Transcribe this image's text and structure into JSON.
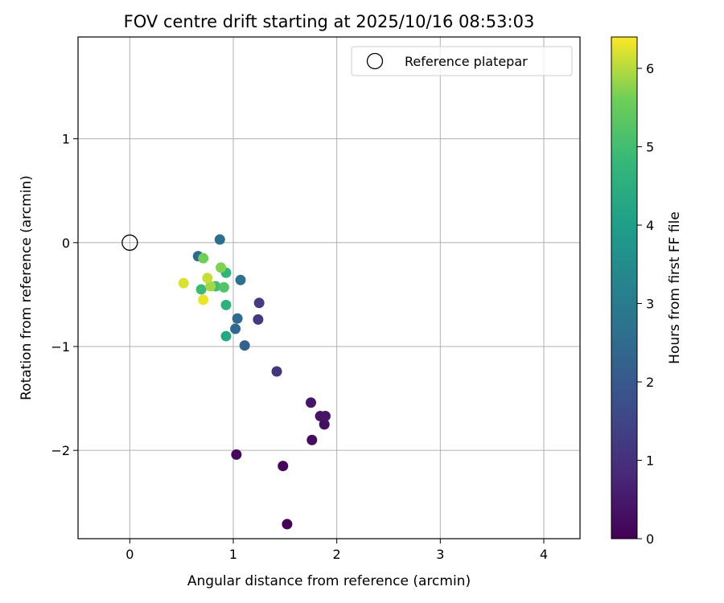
{
  "chart_data": {
    "type": "scatter",
    "title": "FOV centre drift starting at 2025/10/16 08:53:03",
    "xlabel": "Angular distance from reference (arcmin)",
    "ylabel": "Rotation from reference (arcmin)",
    "xlim": [
      -0.5,
      4.35
    ],
    "ylim": [
      -2.85,
      1.98
    ],
    "xticks": [
      0,
      1,
      2,
      3,
      4
    ],
    "yticks": [
      -2,
      -1,
      0,
      1
    ],
    "xtick_labels": [
      "0",
      "1",
      "2",
      "3",
      "4"
    ],
    "ytick_labels": [
      "−2",
      "−1",
      "0",
      "1"
    ],
    "grid": true,
    "legend": {
      "position": "top-right",
      "label": "Reference platepar"
    },
    "reference_point": {
      "x": 0,
      "y": 0
    },
    "colorbar": {
      "label": "Hours from first FF file",
      "range": [
        0,
        6.4
      ],
      "ticks": [
        0,
        1,
        2,
        3,
        4,
        5,
        6
      ],
      "tick_labels": [
        "0",
        "1",
        "2",
        "3",
        "4",
        "5",
        "6"
      ],
      "colormap": "viridis"
    },
    "series": [
      {
        "name": "FOV centre",
        "points": [
          {
            "x": 1.52,
            "y": -2.71,
            "hours": 0.05
          },
          {
            "x": 1.48,
            "y": -2.15,
            "hours": 0.12
          },
          {
            "x": 1.03,
            "y": -2.04,
            "hours": 0.18
          },
          {
            "x": 1.76,
            "y": -1.9,
            "hours": 0.25
          },
          {
            "x": 1.88,
            "y": -1.75,
            "hours": 0.3
          },
          {
            "x": 1.84,
            "y": -1.67,
            "hours": 0.35
          },
          {
            "x": 1.89,
            "y": -1.67,
            "hours": 0.4
          },
          {
            "x": 1.75,
            "y": -1.54,
            "hours": 0.45
          },
          {
            "x": 1.42,
            "y": -1.24,
            "hours": 1.1
          },
          {
            "x": 1.24,
            "y": -0.74,
            "hours": 1.2
          },
          {
            "x": 1.25,
            "y": -0.58,
            "hours": 1.3
          },
          {
            "x": 1.11,
            "y": -0.99,
            "hours": 2.2
          },
          {
            "x": 1.02,
            "y": -0.83,
            "hours": 2.4
          },
          {
            "x": 1.04,
            "y": -0.73,
            "hours": 2.5
          },
          {
            "x": 0.66,
            "y": -0.13,
            "hours": 2.45
          },
          {
            "x": 0.87,
            "y": 0.03,
            "hours": 2.6
          },
          {
            "x": 1.07,
            "y": -0.36,
            "hours": 2.7
          },
          {
            "x": 0.93,
            "y": -0.9,
            "hours": 4.3
          },
          {
            "x": 0.93,
            "y": -0.6,
            "hours": 4.6
          },
          {
            "x": 0.93,
            "y": -0.29,
            "hours": 4.7
          },
          {
            "x": 0.69,
            "y": -0.45,
            "hours": 4.9
          },
          {
            "x": 0.83,
            "y": -0.42,
            "hours": 5.0
          },
          {
            "x": 0.91,
            "y": -0.43,
            "hours": 5.2
          },
          {
            "x": 0.71,
            "y": -0.15,
            "hours": 5.6
          },
          {
            "x": 0.88,
            "y": -0.24,
            "hours": 5.7
          },
          {
            "x": 0.78,
            "y": -0.42,
            "hours": 5.9
          },
          {
            "x": 0.75,
            "y": -0.34,
            "hours": 6.1
          },
          {
            "x": 0.52,
            "y": -0.39,
            "hours": 6.2
          },
          {
            "x": 0.71,
            "y": -0.55,
            "hours": 6.3
          }
        ]
      }
    ]
  }
}
